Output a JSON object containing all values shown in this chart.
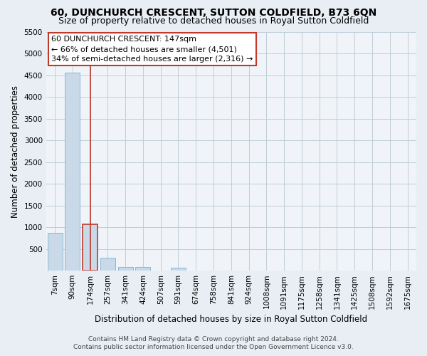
{
  "title": "60, DUNCHURCH CRESCENT, SUTTON COLDFIELD, B73 6QN",
  "subtitle": "Size of property relative to detached houses in Royal Sutton Coldfield",
  "xlabel": "Distribution of detached houses by size in Royal Sutton Coldfield",
  "ylabel": "Number of detached properties",
  "categories": [
    "7sqm",
    "90sqm",
    "174sqm",
    "257sqm",
    "341sqm",
    "424sqm",
    "507sqm",
    "591sqm",
    "674sqm",
    "758sqm",
    "841sqm",
    "924sqm",
    "1008sqm",
    "1091sqm",
    "1175sqm",
    "1258sqm",
    "1341sqm",
    "1425sqm",
    "1508sqm",
    "1592sqm",
    "1675sqm"
  ],
  "values": [
    870,
    4560,
    1060,
    290,
    90,
    80,
    0,
    60,
    0,
    0,
    0,
    0,
    0,
    0,
    0,
    0,
    0,
    0,
    0,
    0,
    0
  ],
  "bar_color": "#c9d9e8",
  "bar_edge_color": "#88b8d8",
  "highlight_index": 2,
  "highlight_bar_edge_color": "#c0392b",
  "annotation_title": "60 DUNCHURCH CRESCENT: 147sqm",
  "annotation_line1": "← 66% of detached houses are smaller (4,501)",
  "annotation_line2": "34% of semi-detached houses are larger (2,316) →",
  "annotation_box_facecolor": "#ffffff",
  "annotation_box_edgecolor": "#c0392b",
  "ylim": [
    0,
    5500
  ],
  "yticks": [
    0,
    500,
    1000,
    1500,
    2000,
    2500,
    3000,
    3500,
    4000,
    4500,
    5000,
    5500
  ],
  "footer_line1": "Contains HM Land Registry data © Crown copyright and database right 2024.",
  "footer_line2": "Contains public sector information licensed under the Open Government Licence v3.0.",
  "background_color": "#e8eef4",
  "plot_bg_color": "#f0f4f8",
  "grid_color": "#c0cdd8",
  "title_fontsize": 10,
  "subtitle_fontsize": 9,
  "tick_fontsize": 7.5,
  "ylabel_fontsize": 8.5,
  "xlabel_fontsize": 8.5,
  "footer_fontsize": 6.5,
  "annotation_fontsize": 8
}
